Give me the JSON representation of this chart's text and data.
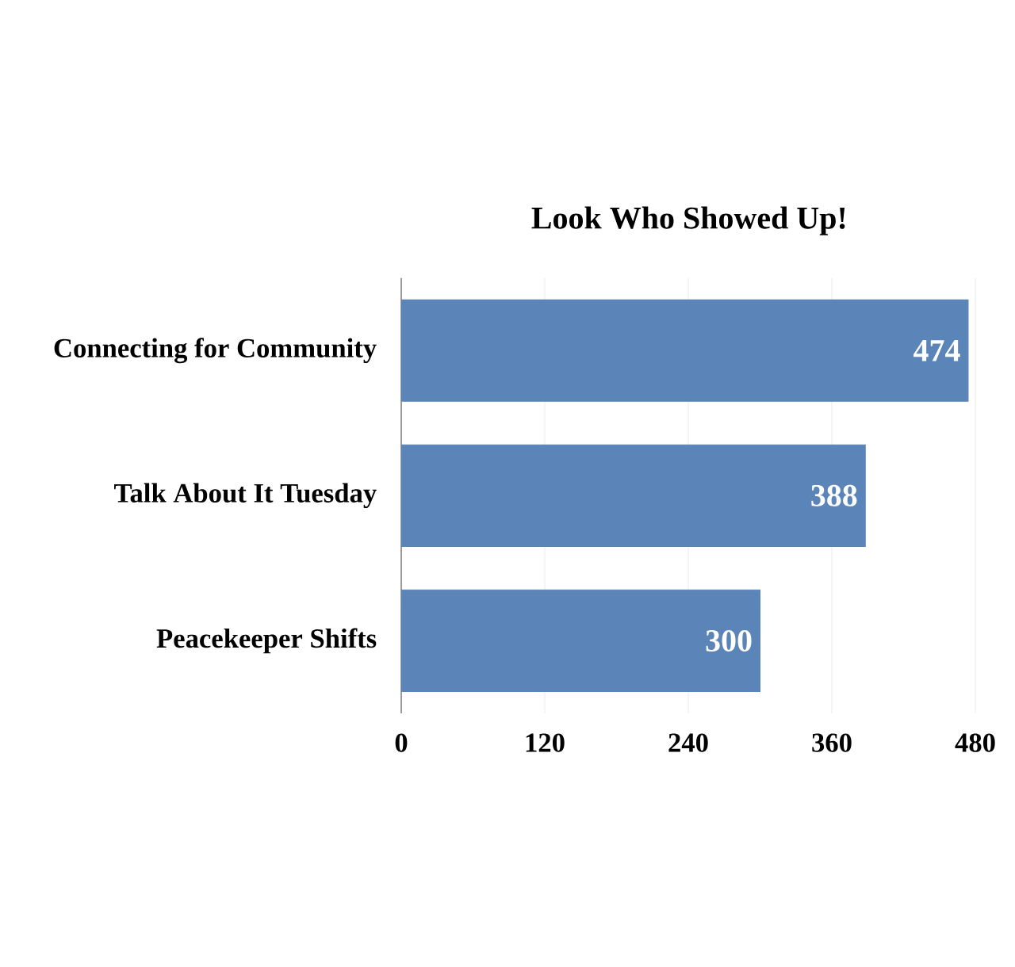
{
  "chart_data": {
    "type": "bar",
    "orientation": "horizontal",
    "title": "Look Who Showed Up!",
    "categories": [
      "Connecting for Community",
      "Talk About It Tuesday",
      "Peacekeeper Shifts"
    ],
    "values": [
      474,
      388,
      300
    ],
    "color": "#5b84b8",
    "xlim": [
      0,
      480
    ],
    "xticks": [
      0,
      120,
      240,
      360,
      480
    ],
    "grid": "x",
    "data_labels": true
  }
}
